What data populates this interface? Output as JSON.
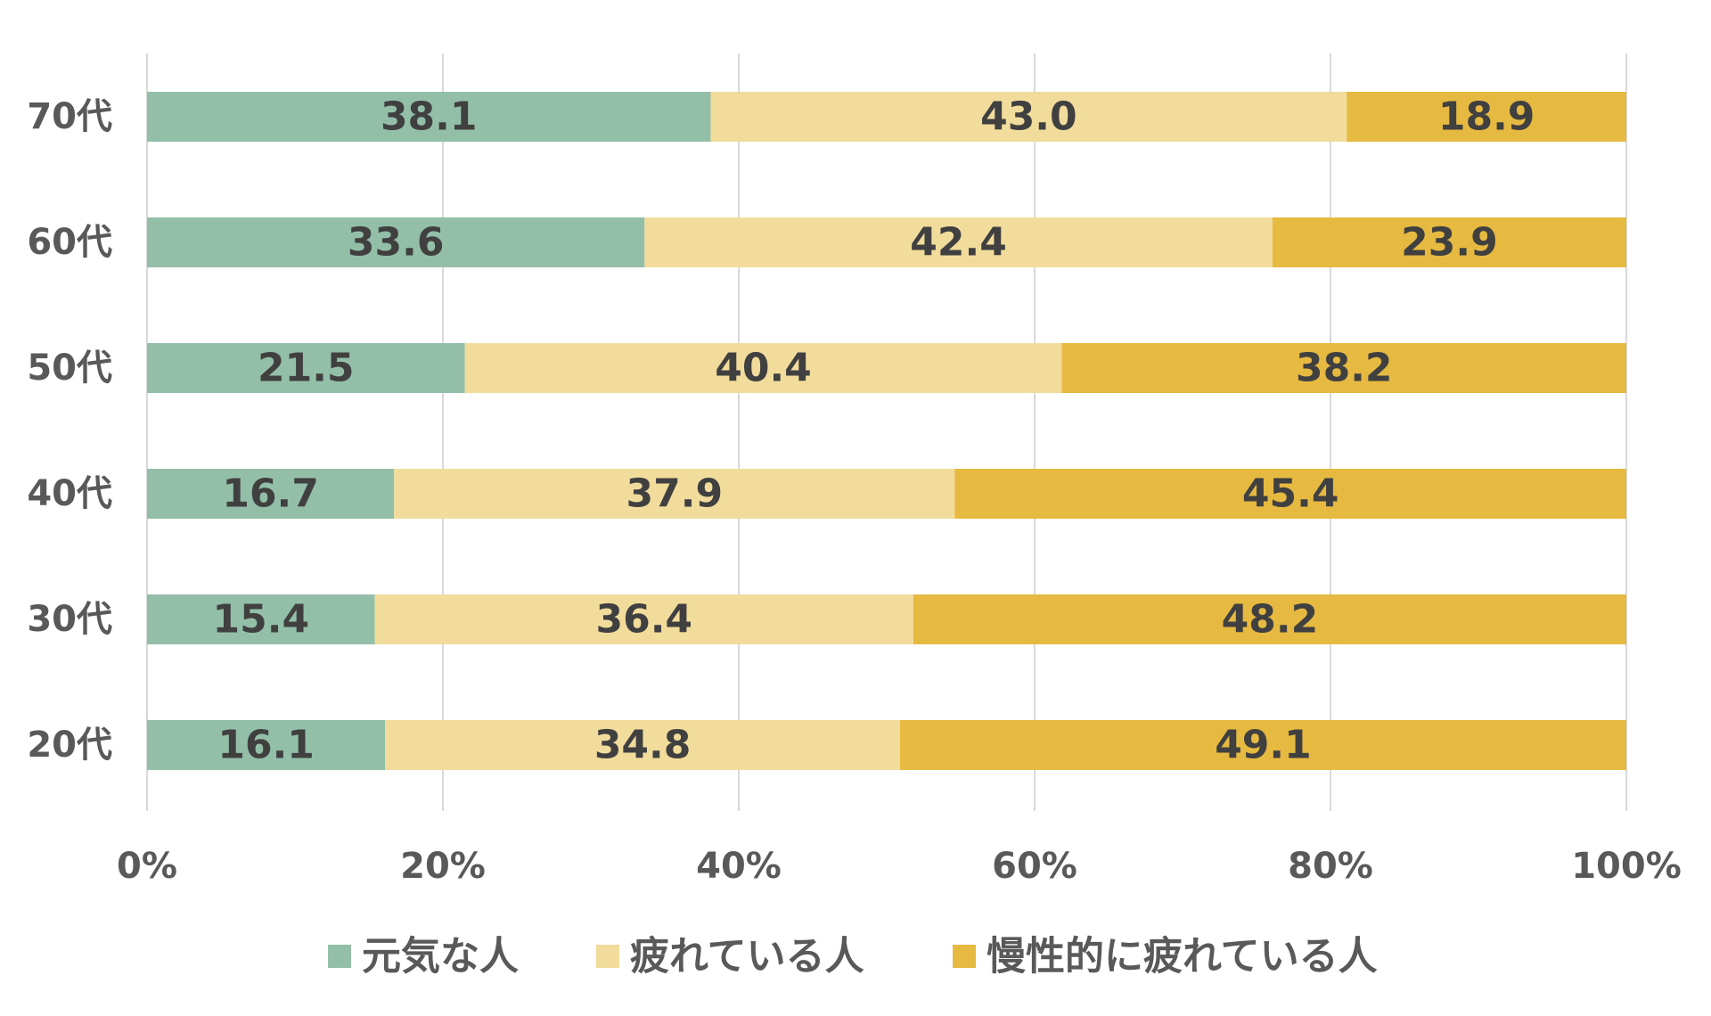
{
  "chart_data": {
    "type": "bar",
    "orientation": "horizontal",
    "stacked": "percent",
    "categories": [
      "70代",
      "60代",
      "50代",
      "40代",
      "30代",
      "20代"
    ],
    "series": [
      {
        "name": "元気な人",
        "color": "#93bfa8",
        "values": [
          38.1,
          33.6,
          21.5,
          16.7,
          15.4,
          16.1
        ]
      },
      {
        "name": "疲れている人",
        "color": "#f2dc9c",
        "values": [
          43.0,
          42.4,
          40.4,
          37.9,
          36.4,
          34.8
        ]
      },
      {
        "name": "慢性的に疲れている人",
        "color": "#e6b941",
        "values": [
          18.9,
          23.9,
          38.2,
          45.4,
          48.2,
          49.1
        ]
      }
    ],
    "value_labels": {
      "元気な人": [
        "38.1",
        "33.6",
        "21.5",
        "16.7",
        "15.4",
        "16.1"
      ],
      "疲れている人": [
        "43.0",
        "42.4",
        "40.4",
        "37.9",
        "36.4",
        "34.8"
      ],
      "慢性的に疲れている人": [
        "18.9",
        "23.9",
        "38.2",
        "45.4",
        "48.2",
        "49.1"
      ]
    },
    "x_ticks": [
      "0%",
      "20%",
      "40%",
      "60%",
      "80%",
      "100%"
    ],
    "xlim": [
      0,
      100
    ],
    "xlabel": "",
    "ylabel": "",
    "title": "",
    "grid": "vertical",
    "legend_position": "bottom"
  }
}
